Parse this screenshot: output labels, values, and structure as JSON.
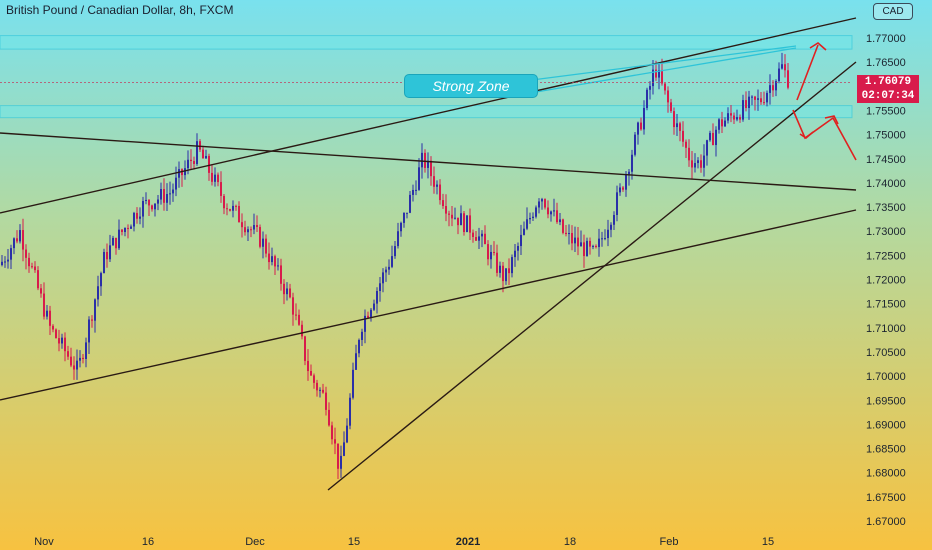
{
  "header": {
    "title": "British Pound / Canadian Dollar, 8h, FXCM",
    "currency": "CAD"
  },
  "annotations": {
    "strong_zone_label": "Strong Zone"
  },
  "price_labels": {
    "current_price": "1.76079",
    "countdown": "02:07:34"
  },
  "colors": {
    "bullish_candle": "#2a2fa8",
    "bearish_candle": "#d81b4b",
    "zone_fill": "#6fe6ea",
    "trendline": "#2a1a14",
    "arrow": "#e02020",
    "zone_line": "#2ec4d8"
  },
  "chart_data": {
    "type": "candlestick",
    "title": "British Pound / Canadian Dollar, 8h, FXCM",
    "y_axis": {
      "ticks": [
        "1.77000",
        "1.76500",
        "1.76000",
        "1.75500",
        "1.75000",
        "1.74500",
        "1.74000",
        "1.73500",
        "1.73000",
        "1.72500",
        "1.72000",
        "1.71500",
        "1.71000",
        "1.70500",
        "1.70000",
        "1.69500",
        "1.69000",
        "1.68500",
        "1.68000",
        "1.67500",
        "1.67000"
      ],
      "range": [
        1.6695,
        1.7745
      ],
      "side": "right"
    },
    "x_axis": {
      "labels": [
        "Nov",
        "16",
        "Dec",
        "15",
        "2021",
        "18",
        "Feb",
        "15"
      ]
    },
    "zones": [
      {
        "name": "resistance-zone",
        "from": 1.7677,
        "to": 1.7705
      },
      {
        "name": "support-zone",
        "from": 1.7535,
        "to": 1.756
      }
    ],
    "series": [
      {
        "segment": "early-Nov",
        "from": 1.723,
        "to": 1.706,
        "low": 1.698
      },
      {
        "segment": "mid-Nov-rally",
        "from": 1.706,
        "to": 1.748,
        "high": 1.7485
      },
      {
        "segment": "late-Nov-drop",
        "from": 1.748,
        "to": 1.732
      },
      {
        "segment": "early-Dec-slide",
        "from": 1.732,
        "to": 1.687,
        "low": 1.6765
      },
      {
        "segment": "mid-Dec-recovery",
        "from": 1.687,
        "to": 1.746,
        "high": 1.7475
      },
      {
        "segment": "Jan-range",
        "from": 1.742,
        "to": 1.721,
        "low": 1.719
      },
      {
        "segment": "late-Jan-rally",
        "from": 1.721,
        "to": 1.764,
        "high": 1.765
      },
      {
        "segment": "Feb-pullback",
        "from": 1.756,
        "to": 1.743,
        "low": 1.735
      },
      {
        "segment": "mid-Feb-rise",
        "from": 1.75,
        "to": 1.7608,
        "high": 1.766
      }
    ],
    "last_price": 1.76079
  }
}
